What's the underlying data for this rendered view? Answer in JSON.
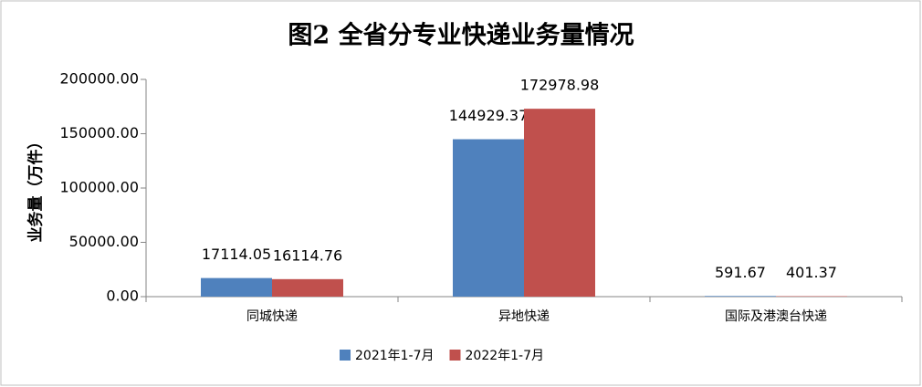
{
  "chart_data": {
    "type": "bar",
    "title": "图2  全省分专业快递业务量情况",
    "y_label": "业务量（万件）",
    "categories": [
      "同城快递",
      "异地快递",
      "国际及港澳台快递"
    ],
    "series": [
      {
        "name": "2021年1-7月",
        "color": "#4f81bd",
        "values": [
          17114.05,
          144929.37,
          591.67
        ]
      },
      {
        "name": "2022年1-7月",
        "color": "#c0504d",
        "values": [
          16114.76,
          172978.98,
          401.37
        ]
      }
    ],
    "ylim": [
      0,
      200000
    ],
    "yticks": [
      {
        "value": 0,
        "label": "0.00"
      },
      {
        "value": 50000,
        "label": "50000.00"
      },
      {
        "value": 100000,
        "label": "100000.00"
      },
      {
        "value": 150000,
        "label": "150000.00"
      },
      {
        "value": 200000,
        "label": "200000.00"
      }
    ],
    "legend": "bottom"
  }
}
